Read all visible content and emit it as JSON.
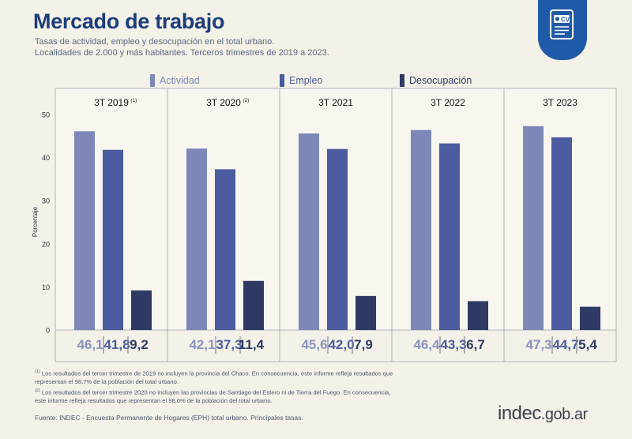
{
  "header": {
    "title": "Mercado de trabajo",
    "subtitle_line1": "Tasas de actividad, empleo y desocupación en el total urbano.",
    "subtitle_line2": "Localidades de 2.000 y más habitantes. Terceros trimestres de 2019 a 2023.",
    "badge_icon": "cv-document-icon",
    "badge_text": "CV"
  },
  "colors": {
    "actividad": "#7d87b8",
    "empleo": "#4a5b9f",
    "desocupacion": "#2e3a64",
    "value_actividad": "#8a93c0",
    "value_empleo": "#4a5b9f",
    "value_desocupacion": "#2e3a64"
  },
  "chart_data": {
    "type": "bar",
    "title": "Mercado de trabajo",
    "ylabel": "Porcentaje",
    "ylim": [
      0,
      50
    ],
    "yticks": [
      "0",
      "10",
      "20",
      "30",
      "40",
      "50"
    ],
    "legend": [
      "Actividad",
      "Empleo",
      "Desocupación"
    ],
    "categories": [
      "3T 2019",
      "3T 2020",
      "3T 2021",
      "3T 2022",
      "3T 2023"
    ],
    "category_notes": [
      "(1)",
      "(2)",
      "",
      "",
      ""
    ],
    "series": [
      {
        "name": "Actividad",
        "values": [
          46.1,
          42.1,
          45.6,
          46.4,
          47.3
        ],
        "labels": [
          "46,1",
          "42,1",
          "45,6",
          "46,4",
          "47,3"
        ]
      },
      {
        "name": "Empleo",
        "values": [
          41.8,
          37.3,
          42.0,
          43.3,
          44.7
        ],
        "labels": [
          "41,8",
          "37,3",
          "42,0",
          "43,3",
          "44,7"
        ]
      },
      {
        "name": "Desocupación",
        "values": [
          9.2,
          11.4,
          7.9,
          6.7,
          5.4
        ],
        "labels": [
          "9,2",
          "11,4",
          "7,9",
          "6,7",
          "5,4"
        ]
      }
    ]
  },
  "footnotes": {
    "note1_mark": "(1)",
    "note1_line1": "Los resultados del tercer trimestre de 2019 no incluyen la provincia del Chaco. En consecuencia, este informe refleja resultados que",
    "note1_line2": "representan el 98,7% de la población del total urbano.",
    "note2_mark": "(2)",
    "note2_line1": "Los resultados del tercer trimestre 2020 no incluyen las provincias de Santiago del Estero ni de Tierra del Fuego. En consecuencia,",
    "note2_line2": "este informe refleja resultados que representan el 98,6% de la población del total urbano."
  },
  "source": "Fuente: INDEC - Encuesta Permanente de Hogares (EPH) total urbano. Principales tasas.",
  "logo": {
    "main": "indec",
    "suffix": ".gob.ar"
  }
}
